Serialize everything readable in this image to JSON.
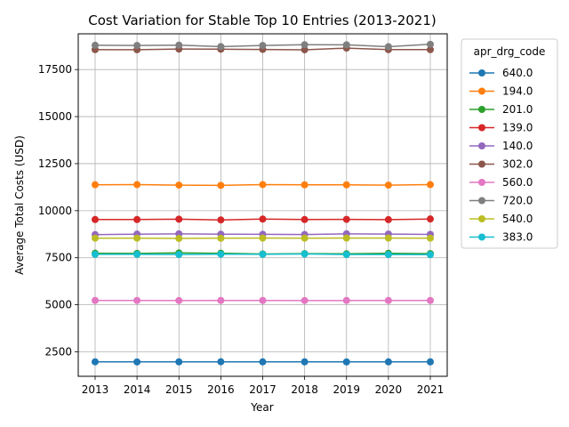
{
  "chart_data": {
    "type": "line",
    "title": "Cost Variation for Stable Top 10 Entries (2013-2021)",
    "xlabel": "Year",
    "ylabel": "Average Total Costs (USD)",
    "x": [
      "2013",
      "2014",
      "2015",
      "2016",
      "2017",
      "2018",
      "2019",
      "2020",
      "2021"
    ],
    "ylim": [
      1200,
      19400
    ],
    "yticks": [
      2500,
      5000,
      7500,
      10000,
      12500,
      15000,
      17500
    ],
    "ytick_labels": [
      "2500",
      "5000",
      "7500",
      "10000",
      "12500",
      "15000",
      "17500"
    ],
    "grid": true,
    "legend_title": "apr_drg_code",
    "legend_placement": "outside-top-right",
    "series": [
      {
        "name": "640.0",
        "color": "#1f77b4",
        "values": [
          1970,
          1965,
          1968,
          1972,
          1966,
          1968,
          1965,
          1967,
          1968
        ]
      },
      {
        "name": "194.0",
        "color": "#ff7f0e",
        "values": [
          11380,
          11385,
          11360,
          11345,
          11385,
          11375,
          11375,
          11360,
          11385
        ]
      },
      {
        "name": "201.0",
        "color": "#2ca02c",
        "values": [
          7740,
          7730,
          7755,
          7740,
          7700,
          7720,
          7710,
          7735,
          7720
        ]
      },
      {
        "name": "139.0",
        "color": "#d62728",
        "values": [
          9530,
          9530,
          9550,
          9510,
          9555,
          9530,
          9540,
          9525,
          9560
        ]
      },
      {
        "name": "140.0",
        "color": "#9467bd",
        "values": [
          8730,
          8755,
          8770,
          8750,
          8745,
          8735,
          8770,
          8760,
          8740
        ]
      },
      {
        "name": "302.0",
        "color": "#8c564b",
        "values": [
          18560,
          18555,
          18590,
          18580,
          18570,
          18550,
          18640,
          18560,
          18560
        ]
      },
      {
        "name": "560.0",
        "color": "#e377c2",
        "values": [
          5230,
          5230,
          5225,
          5230,
          5230,
          5225,
          5230,
          5230,
          5230
        ]
      },
      {
        "name": "720.0",
        "color": "#7f7f7f",
        "values": [
          18790,
          18780,
          18800,
          18720,
          18780,
          18820,
          18815,
          18715,
          18840
        ]
      },
      {
        "name": "540.0",
        "color": "#bcbd22",
        "values": [
          8540,
          8540,
          8525,
          8535,
          8545,
          8540,
          8545,
          8545,
          8540
        ]
      },
      {
        "name": "383.0",
        "color": "#17becf",
        "values": [
          7680,
          7680,
          7670,
          7690,
          7680,
          7700,
          7670,
          7670,
          7665
        ]
      }
    ]
  }
}
